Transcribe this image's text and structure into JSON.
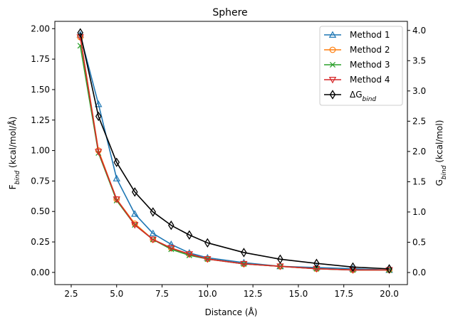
{
  "chart_data": {
    "type": "line",
    "title": "Sphere",
    "xlabel": "Distance (Å)",
    "ylabel_left": "F_bind (kcal/mol/Å)",
    "ylabel_right": "G_bind (kcal/mol)",
    "xlim": [
      1.6,
      21
    ],
    "ylim_left": [
      -0.1,
      2.06
    ],
    "ylim_right": [
      -0.2,
      4.15
    ],
    "x_ticks": [
      2.5,
      5.0,
      7.5,
      10.0,
      12.5,
      15.0,
      17.5,
      20.0
    ],
    "x_tick_labels": [
      "2.5",
      "5.0",
      "7.5",
      "10.0",
      "12.5",
      "15.0",
      "17.5",
      "20.0"
    ],
    "y_ticks_left": [
      0.0,
      0.25,
      0.5,
      0.75,
      1.0,
      1.25,
      1.5,
      1.75,
      2.0
    ],
    "y_tick_labels_left": [
      "0.00",
      "0.25",
      "0.50",
      "0.75",
      "1.00",
      "1.25",
      "1.50",
      "1.75",
      "2.00"
    ],
    "y_ticks_right": [
      0.0,
      0.5,
      1.0,
      1.5,
      2.0,
      2.5,
      3.0,
      3.5,
      4.0
    ],
    "y_tick_labels_right": [
      "0.0",
      "0.5",
      "1.0",
      "1.5",
      "2.0",
      "2.5",
      "3.0",
      "3.5",
      "4.0"
    ],
    "grid": false,
    "legend_position": "top-right",
    "series": [
      {
        "name": "Method 1",
        "axis": "left",
        "color": "#1f77b4",
        "marker": "triangle-up",
        "x": [
          3,
          4,
          5,
          6,
          7,
          8,
          9,
          10,
          12,
          14,
          16,
          18,
          20
        ],
        "y": [
          1.95,
          1.38,
          0.77,
          0.48,
          0.32,
          0.23,
          0.16,
          0.12,
          0.08,
          0.05,
          0.04,
          0.03,
          0.02
        ]
      },
      {
        "name": "Method 2",
        "axis": "left",
        "color": "#ff7f0e",
        "marker": "circle",
        "x": [
          3,
          4,
          5,
          6,
          7,
          8,
          9,
          10,
          12,
          14,
          16,
          18,
          20
        ],
        "y": [
          1.93,
          1.0,
          0.6,
          0.4,
          0.27,
          0.2,
          0.15,
          0.11,
          0.07,
          0.05,
          0.03,
          0.02,
          0.02
        ]
      },
      {
        "name": "Method 3",
        "axis": "left",
        "color": "#2ca02c",
        "marker": "x",
        "x": [
          3,
          4,
          5,
          6,
          7,
          8,
          9,
          10,
          12,
          14,
          16,
          18,
          20
        ],
        "y": [
          1.86,
          0.98,
          0.59,
          0.39,
          0.27,
          0.19,
          0.14,
          0.11,
          0.07,
          0.05,
          0.03,
          0.02,
          0.02
        ]
      },
      {
        "name": "Method 4",
        "axis": "left",
        "color": "#d62728",
        "marker": "triangle-down",
        "x": [
          3,
          4,
          5,
          6,
          7,
          8,
          9,
          10,
          12,
          14,
          16,
          18,
          20
        ],
        "y": [
          1.93,
          0.99,
          0.6,
          0.39,
          0.27,
          0.2,
          0.15,
          0.11,
          0.07,
          0.05,
          0.03,
          0.02,
          0.02
        ]
      },
      {
        "name": "ΔG_bind",
        "axis": "right",
        "color": "#000000",
        "marker": "diamond",
        "x": [
          3,
          4,
          5,
          6,
          7,
          8,
          9,
          10,
          12,
          14,
          16,
          18,
          20
        ],
        "y": [
          3.96,
          2.58,
          1.82,
          1.33,
          1.0,
          0.78,
          0.62,
          0.49,
          0.33,
          0.22,
          0.15,
          0.09,
          0.06
        ]
      }
    ]
  }
}
